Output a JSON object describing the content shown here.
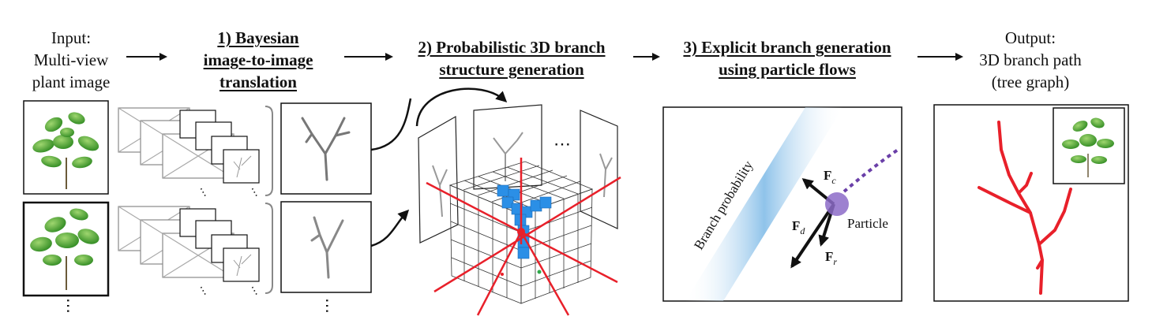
{
  "header": {
    "input": [
      "Input:",
      "Multi-view",
      "plant image"
    ],
    "stage1": [
      "1) Bayesian",
      "image-to-image",
      "translation"
    ],
    "stage2": [
      "2) Probabilistic 3D branch",
      "structure generation"
    ],
    "stage3": [
      "3) Explicit branch generation",
      "using particle flows"
    ],
    "output": [
      "Output:",
      "3D branch path",
      "(tree graph)"
    ]
  },
  "panel3": {
    "band_label": "Branch probability",
    "particle_label": "Particle",
    "force_c": "F",
    "force_c_sub": "c",
    "force_d": "F",
    "force_d_sub": "d",
    "force_r": "F",
    "force_r_sub": "r"
  },
  "ellipsis": "⋯",
  "colors": {
    "branch_red": "#e8202a",
    "voxel_blue": "#2b8fe6",
    "band_blue": "#8fc3ea",
    "particle_purple": "#8c6bc8",
    "trail_purple": "#6a3fa8",
    "leaf_green": "#4aa82c"
  }
}
